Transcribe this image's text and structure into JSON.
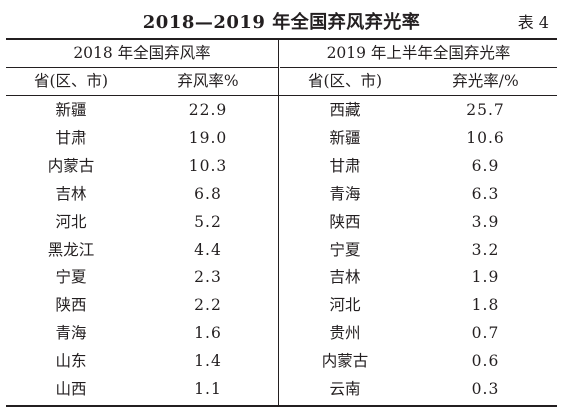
{
  "title": "2018—2019 年全国弃风弃光率",
  "table_no": "表 4",
  "left": {
    "group_header": "2018 年全国弃风率",
    "col_region": "省(区、市)",
    "col_rate": "弃风率%",
    "rows": [
      {
        "region": "新疆",
        "rate": "22.9"
      },
      {
        "region": "甘肃",
        "rate": "19.0"
      },
      {
        "region": "内蒙古",
        "rate": "10.3"
      },
      {
        "region": "吉林",
        "rate": "6.8"
      },
      {
        "region": "河北",
        "rate": "5.2"
      },
      {
        "region": "黑龙江",
        "rate": "4.4"
      },
      {
        "region": "宁夏",
        "rate": "2.3"
      },
      {
        "region": "陕西",
        "rate": "2.2"
      },
      {
        "region": "青海",
        "rate": "1.6"
      },
      {
        "region": "山东",
        "rate": "1.4"
      },
      {
        "region": "山西",
        "rate": "1.1"
      }
    ]
  },
  "right": {
    "group_header": "2019 年上半年全国弃光率",
    "col_region": "省(区、市)",
    "col_rate": "弃光率/%",
    "rows": [
      {
        "region": "西藏",
        "rate": "25.7"
      },
      {
        "region": "新疆",
        "rate": "10.6"
      },
      {
        "region": "甘肃",
        "rate": "6.9"
      },
      {
        "region": "青海",
        "rate": "6.3"
      },
      {
        "region": "陕西",
        "rate": "3.9"
      },
      {
        "region": "宁夏",
        "rate": "3.2"
      },
      {
        "region": "吉林",
        "rate": "1.9"
      },
      {
        "region": "河北",
        "rate": "1.8"
      },
      {
        "region": "贵州",
        "rate": "0.7"
      },
      {
        "region": "内蒙古",
        "rate": "0.6"
      },
      {
        "region": "云南",
        "rate": "0.3"
      }
    ]
  }
}
